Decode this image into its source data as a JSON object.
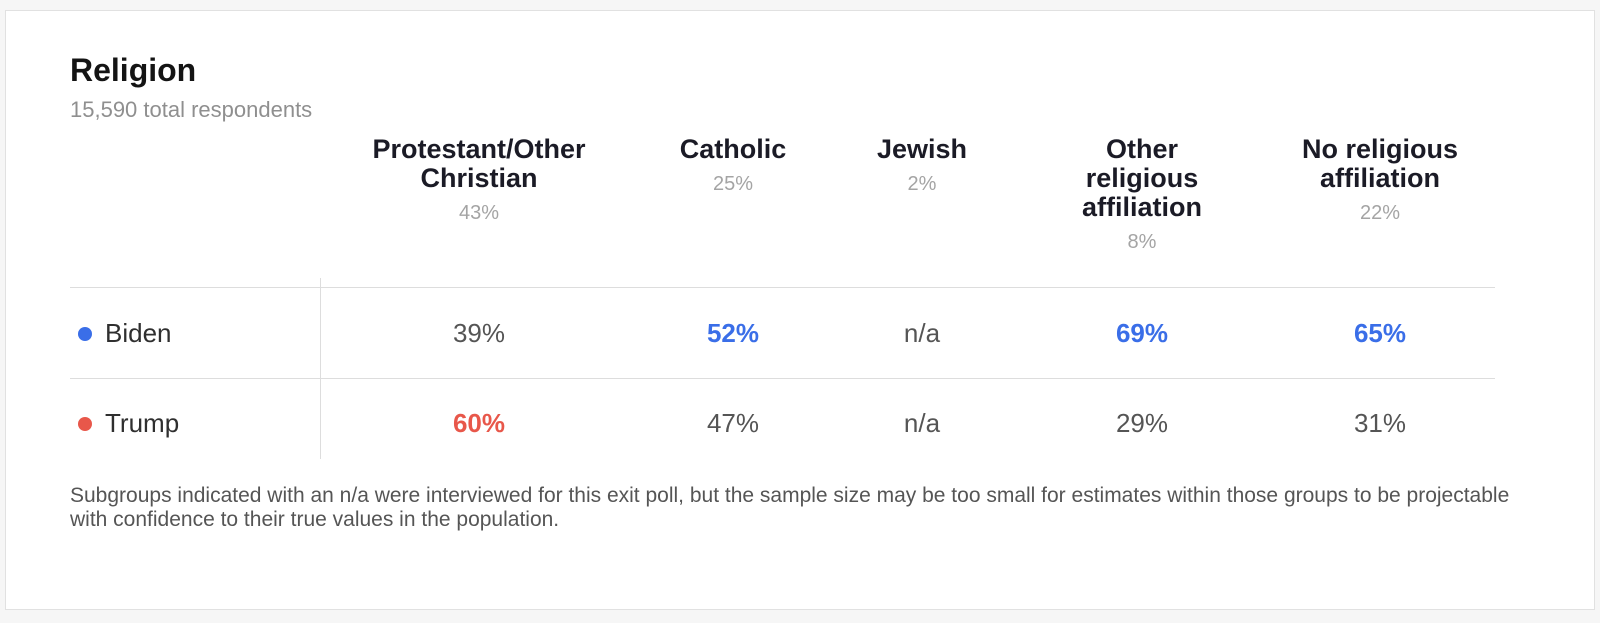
{
  "chart_data": {
    "type": "table",
    "title": "Religion",
    "subtitle": "15,590 total respondents",
    "columns": [
      {
        "name": "Protestant/Other Christian",
        "lines": [
          "Protestant/Other",
          "Christian"
        ],
        "share": "43%"
      },
      {
        "name": "Catholic",
        "lines": [
          "Catholic"
        ],
        "share": "25%"
      },
      {
        "name": "Jewish",
        "lines": [
          "Jewish"
        ],
        "share": "2%"
      },
      {
        "name": "Other religious affiliation",
        "lines": [
          "Other",
          "religious",
          "affiliation"
        ],
        "share": "8%"
      },
      {
        "name": "No religious affiliation",
        "lines": [
          "No religious",
          "affiliation"
        ],
        "share": "22%"
      }
    ],
    "series": [
      {
        "name": "Biden",
        "color": "#3a6ee8",
        "values": [
          "39%",
          "52%",
          "n/a",
          "69%",
          "65%"
        ],
        "winner": [
          false,
          true,
          false,
          true,
          true
        ]
      },
      {
        "name": "Trump",
        "color": "#e8574a",
        "values": [
          "60%",
          "47%",
          "n/a",
          "29%",
          "31%"
        ],
        "winner": [
          true,
          false,
          false,
          false,
          false
        ]
      }
    ],
    "footnote": "Subgroups indicated with an n/a were interviewed for this exit poll, but the sample size may be too small for estimates within those groups to be projectable with confidence to their true values in the population."
  }
}
